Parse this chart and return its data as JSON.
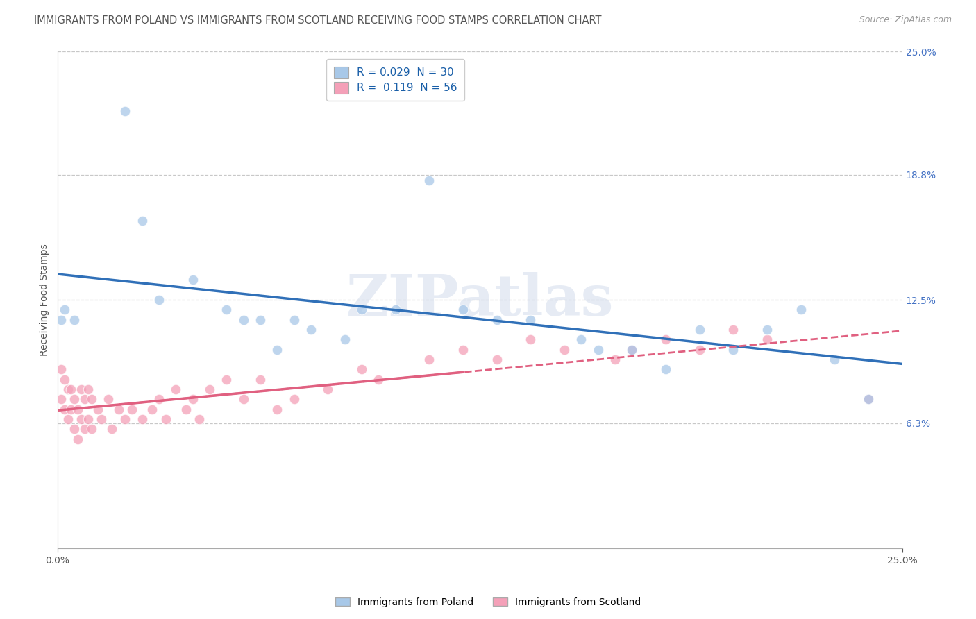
{
  "title": "IMMIGRANTS FROM POLAND VS IMMIGRANTS FROM SCOTLAND RECEIVING FOOD STAMPS CORRELATION CHART",
  "source": "Source: ZipAtlas.com",
  "ylabel": "Receiving Food Stamps",
  "watermark": "ZIPatlas",
  "xlim": [
    0.0,
    0.25
  ],
  "ylim": [
    0.0,
    0.25
  ],
  "ytick_labels_right": [
    "6.3%",
    "12.5%",
    "18.8%",
    "25.0%"
  ],
  "ytick_vals_right": [
    0.063,
    0.125,
    0.188,
    0.25
  ],
  "legend_poland": "R = 0.029  N = 30",
  "legend_scotland": "R =  0.119  N = 56",
  "legend_label_poland": "Immigrants from Poland",
  "legend_label_scotland": "Immigrants from Scotland",
  "color_poland": "#a8c8e8",
  "color_scotland": "#f4a0b8",
  "color_trendline_poland": "#3070b8",
  "color_trendline_scotland": "#e06080",
  "background_color": "#ffffff",
  "grid_color": "#bbbbbb",
  "poland_x": [
    0.001,
    0.002,
    0.005,
    0.02,
    0.025,
    0.03,
    0.04,
    0.055,
    0.06,
    0.065,
    0.07,
    0.075,
    0.085,
    0.09,
    0.1,
    0.12,
    0.13,
    0.14,
    0.155,
    0.16,
    0.17,
    0.18,
    0.19,
    0.2,
    0.21,
    0.22,
    0.23,
    0.24,
    0.05,
    0.11
  ],
  "poland_y": [
    0.115,
    0.12,
    0.115,
    0.22,
    0.165,
    0.125,
    0.135,
    0.115,
    0.115,
    0.1,
    0.115,
    0.11,
    0.105,
    0.12,
    0.12,
    0.12,
    0.115,
    0.115,
    0.105,
    0.1,
    0.1,
    0.09,
    0.11,
    0.1,
    0.11,
    0.12,
    0.095,
    0.075,
    0.12,
    0.185
  ],
  "scotland_x": [
    0.001,
    0.001,
    0.002,
    0.002,
    0.003,
    0.003,
    0.004,
    0.004,
    0.005,
    0.005,
    0.006,
    0.006,
    0.007,
    0.007,
    0.008,
    0.008,
    0.009,
    0.009,
    0.01,
    0.01,
    0.012,
    0.013,
    0.015,
    0.016,
    0.018,
    0.02,
    0.022,
    0.025,
    0.028,
    0.03,
    0.032,
    0.035,
    0.038,
    0.04,
    0.042,
    0.045,
    0.05,
    0.055,
    0.06,
    0.065,
    0.07,
    0.08,
    0.09,
    0.095,
    0.11,
    0.12,
    0.13,
    0.14,
    0.15,
    0.165,
    0.17,
    0.18,
    0.19,
    0.2,
    0.21,
    0.24
  ],
  "scotland_y": [
    0.09,
    0.075,
    0.085,
    0.07,
    0.08,
    0.065,
    0.08,
    0.07,
    0.075,
    0.06,
    0.07,
    0.055,
    0.08,
    0.065,
    0.075,
    0.06,
    0.08,
    0.065,
    0.075,
    0.06,
    0.07,
    0.065,
    0.075,
    0.06,
    0.07,
    0.065,
    0.07,
    0.065,
    0.07,
    0.075,
    0.065,
    0.08,
    0.07,
    0.075,
    0.065,
    0.08,
    0.085,
    0.075,
    0.085,
    0.07,
    0.075,
    0.08,
    0.09,
    0.085,
    0.095,
    0.1,
    0.095,
    0.105,
    0.1,
    0.095,
    0.1,
    0.105,
    0.1,
    0.11,
    0.105,
    0.075
  ],
  "title_fontsize": 10.5,
  "axis_label_fontsize": 10,
  "tick_fontsize": 10,
  "legend_fontsize": 11,
  "watermark_fontsize": 60,
  "watermark_color": "#c8d4e8",
  "watermark_alpha": 0.45
}
